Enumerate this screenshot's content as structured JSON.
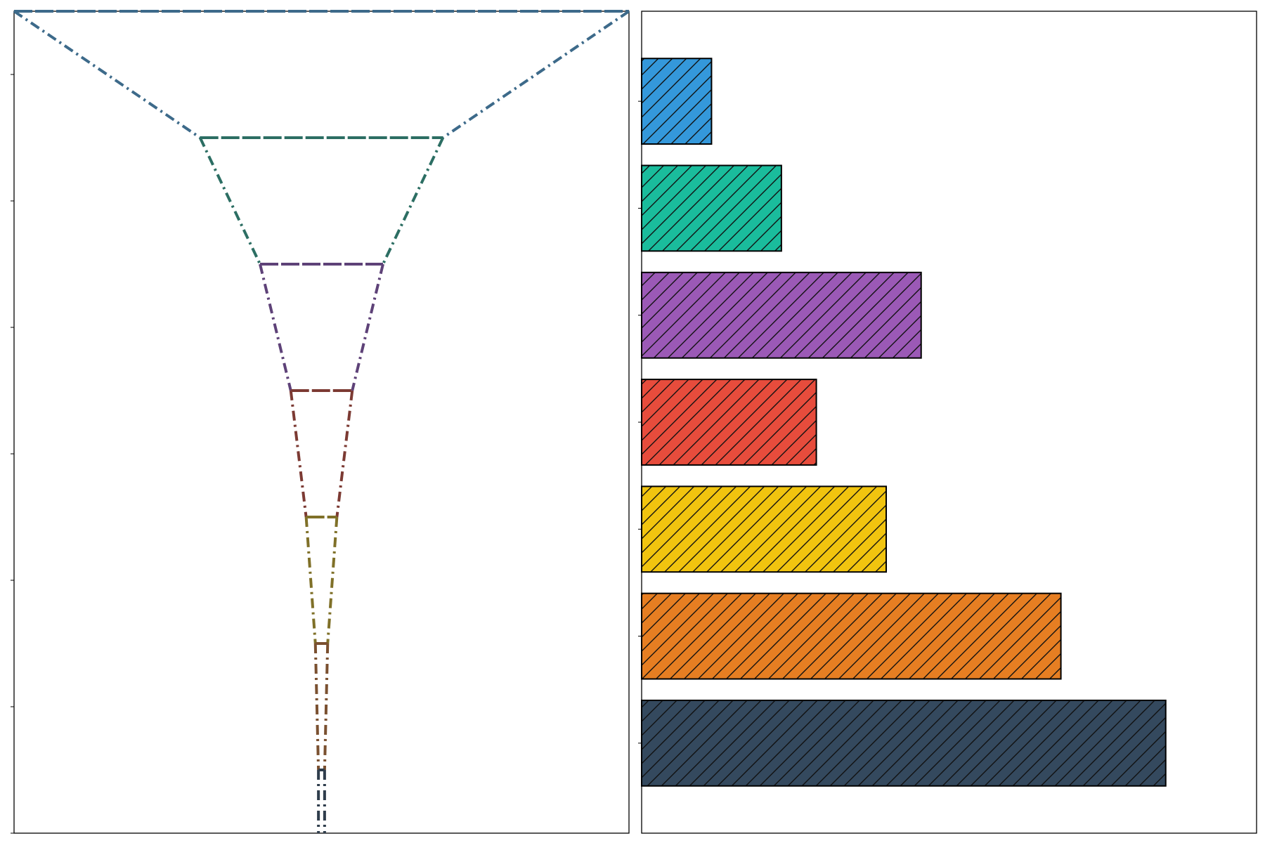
{
  "chart_data": [
    {
      "type": "funnel",
      "title": "",
      "xlabel": "",
      "ylabel": "",
      "line_style": "dash-dot",
      "stages": [
        {
          "width": 1.0,
          "color": "#3d6a8a"
        },
        {
          "width": 0.395,
          "color": "#2c6e63"
        },
        {
          "width": 0.2,
          "color": "#5e4278"
        },
        {
          "width": 0.1,
          "color": "#7c3a33"
        },
        {
          "width": 0.05,
          "color": "#7f7028"
        },
        {
          "width": 0.02,
          "color": "#7a5030"
        },
        {
          "width": 0.01,
          "color": "#2f3d4c"
        },
        {
          "width": 0.01,
          "color": "#2f3d4c"
        }
      ]
    },
    {
      "type": "bar",
      "orientation": "horizontal",
      "title": "",
      "xlabel": "",
      "ylabel": "",
      "xlim": [
        0,
        880
      ],
      "hatch": "diagonal",
      "values": [
        100,
        200,
        400,
        250,
        350,
        600,
        750
      ],
      "colors": [
        "#3498db",
        "#1abc9c",
        "#9b59b6",
        "#e74c3c",
        "#f1c40f",
        "#e67e22",
        "#34495e"
      ]
    }
  ]
}
